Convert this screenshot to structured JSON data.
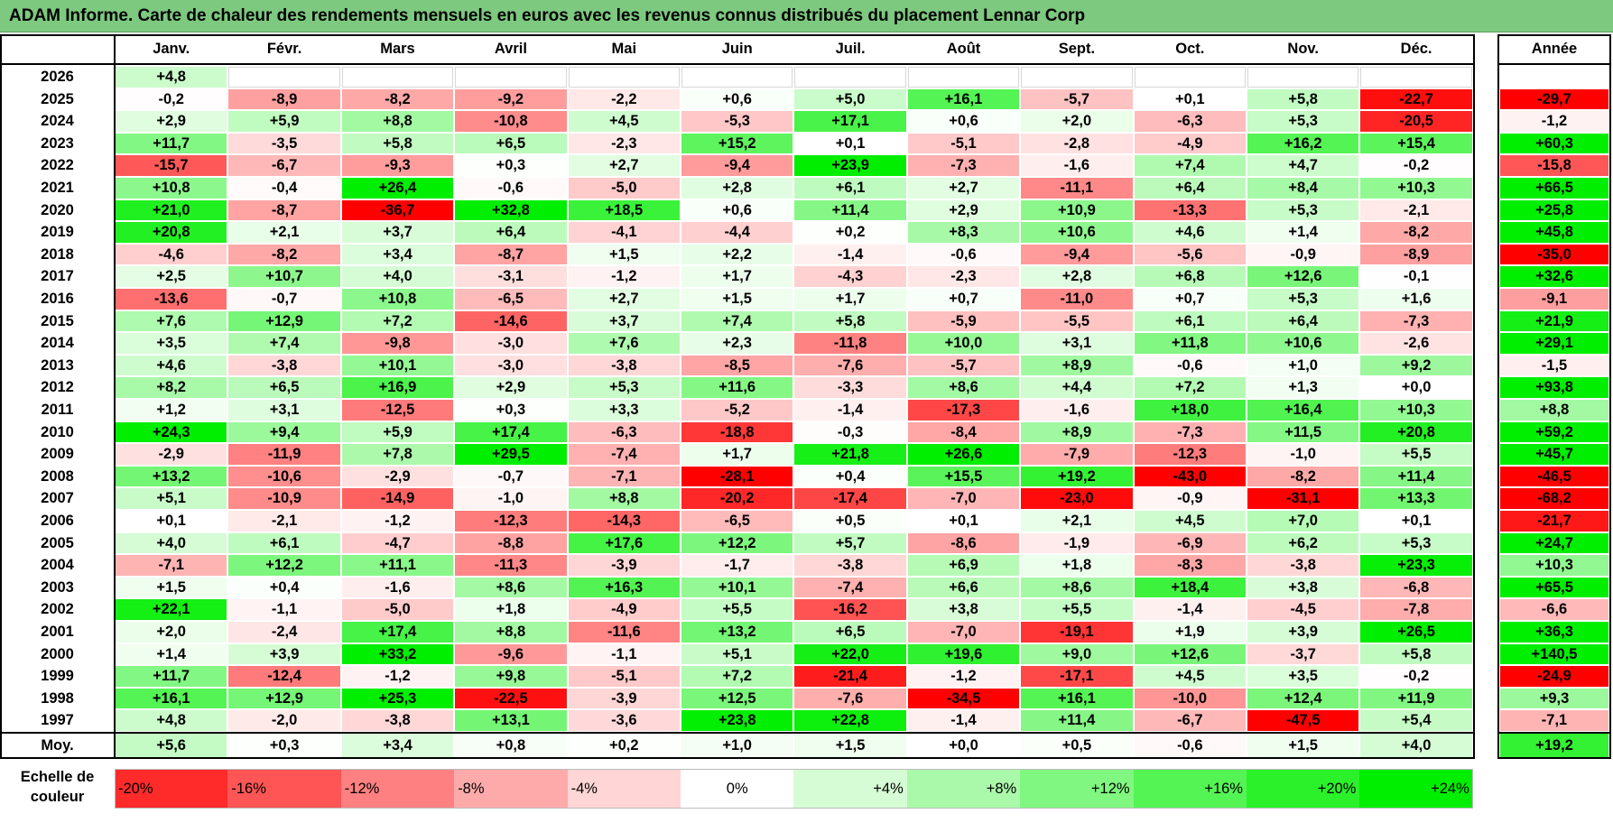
{
  "title": "ADAM Informe. Carte de chaleur des rendements mensuels en euros avec les revenus connus distribués du placement Lennar Corp",
  "colors": {
    "title_bg": "#7dc97f",
    "neg_max": "#ff0000",
    "pos_max": "#00ee00",
    "neutral": "#ffffff"
  },
  "chart_data": {
    "type": "heatmap",
    "title": "ADAM Informe. Carte de chaleur des rendements mensuels en euros avec les revenus connus distribués du placement Lennar Corp",
    "months": [
      "Janv.",
      "Févr.",
      "Mars",
      "Avril",
      "Mai",
      "Juin",
      "Juil.",
      "Août",
      "Sept.",
      "Oct.",
      "Nov.",
      "Déc."
    ],
    "year_header": "Année",
    "rows": [
      {
        "year": "2026",
        "values": [
          "+4,8",
          "",
          "",
          "",
          "",
          "",
          "",
          "",
          "",
          "",
          "",
          ""
        ],
        "annual": ""
      },
      {
        "year": "2025",
        "values": [
          "-0,2",
          "-8,9",
          "-8,2",
          "-9,2",
          "-2,2",
          "+0,6",
          "+5,0",
          "+16,1",
          "-5,7",
          "+0,1",
          "+5,8",
          "-22,7"
        ],
        "annual": "-29,7"
      },
      {
        "year": "2024",
        "values": [
          "+2,9",
          "+5,9",
          "+8,8",
          "-10,8",
          "+4,5",
          "-5,3",
          "+17,1",
          "+0,6",
          "+2,0",
          "-6,3",
          "+5,3",
          "-20,5"
        ],
        "annual": "-1,2"
      },
      {
        "year": "2023",
        "values": [
          "+11,7",
          "-3,5",
          "+5,8",
          "+6,5",
          "-2,3",
          "+15,2",
          "+0,1",
          "-5,1",
          "-2,8",
          "-4,9",
          "+16,2",
          "+15,4"
        ],
        "annual": "+60,3"
      },
      {
        "year": "2022",
        "values": [
          "-15,7",
          "-6,7",
          "-9,3",
          "+0,3",
          "+2,7",
          "-9,4",
          "+23,9",
          "-7,3",
          "-1,6",
          "+7,4",
          "+4,7",
          "-0,2"
        ],
        "annual": "-15,8"
      },
      {
        "year": "2021",
        "values": [
          "+10,8",
          "-0,4",
          "+26,4",
          "-0,6",
          "-5,0",
          "+2,8",
          "+6,1",
          "+2,7",
          "-11,1",
          "+6,4",
          "+8,4",
          "+10,3"
        ],
        "annual": "+66,5"
      },
      {
        "year": "2020",
        "values": [
          "+21,0",
          "-8,7",
          "-36,7",
          "+32,8",
          "+18,5",
          "+0,6",
          "+11,4",
          "+2,9",
          "+10,9",
          "-13,3",
          "+5,3",
          "-2,1"
        ],
        "annual": "+25,8"
      },
      {
        "year": "2019",
        "values": [
          "+20,8",
          "+2,1",
          "+3,7",
          "+6,4",
          "-4,1",
          "-4,4",
          "+0,2",
          "+8,3",
          "+10,6",
          "+4,6",
          "+1,4",
          "-8,2"
        ],
        "annual": "+45,8"
      },
      {
        "year": "2018",
        "values": [
          "-4,6",
          "-8,2",
          "+3,4",
          "-8,7",
          "+1,5",
          "+2,2",
          "-1,4",
          "-0,6",
          "-9,4",
          "-5,6",
          "-0,9",
          "-8,9"
        ],
        "annual": "-35,0"
      },
      {
        "year": "2017",
        "values": [
          "+2,5",
          "+10,7",
          "+4,0",
          "-3,1",
          "-1,2",
          "+1,7",
          "-4,3",
          "-2,3",
          "+2,8",
          "+6,8",
          "+12,6",
          "-0,1"
        ],
        "annual": "+32,6"
      },
      {
        "year": "2016",
        "values": [
          "-13,6",
          "-0,7",
          "+10,8",
          "-6,5",
          "+2,7",
          "+1,5",
          "+1,7",
          "+0,7",
          "-11,0",
          "+0,7",
          "+5,3",
          "+1,6"
        ],
        "annual": "-9,1"
      },
      {
        "year": "2015",
        "values": [
          "+7,6",
          "+12,9",
          "+7,2",
          "-14,6",
          "+3,7",
          "+7,4",
          "+5,8",
          "-5,9",
          "-5,5",
          "+6,1",
          "+6,4",
          "-7,3"
        ],
        "annual": "+21,9"
      },
      {
        "year": "2014",
        "values": [
          "+3,5",
          "+7,4",
          "-9,8",
          "-3,0",
          "+7,6",
          "+2,3",
          "-11,8",
          "+10,0",
          "+3,1",
          "+11,8",
          "+10,6",
          "-2,6"
        ],
        "annual": "+29,1"
      },
      {
        "year": "2013",
        "values": [
          "+4,6",
          "-3,8",
          "+10,1",
          "-3,0",
          "-3,8",
          "-8,5",
          "-7,6",
          "-5,7",
          "+8,9",
          "-0,6",
          "+1,0",
          "+9,2"
        ],
        "annual": "-1,5"
      },
      {
        "year": "2012",
        "values": [
          "+8,2",
          "+6,5",
          "+16,9",
          "+2,9",
          "+5,3",
          "+11,6",
          "-3,3",
          "+8,6",
          "+4,4",
          "+7,2",
          "+1,3",
          "+0,0"
        ],
        "annual": "+93,8"
      },
      {
        "year": "2011",
        "values": [
          "+1,2",
          "+3,1",
          "-12,5",
          "+0,3",
          "+3,3",
          "-5,2",
          "-1,4",
          "-17,3",
          "-1,6",
          "+18,0",
          "+16,4",
          "+10,3"
        ],
        "annual": "+8,8"
      },
      {
        "year": "2010",
        "values": [
          "+24,3",
          "+9,4",
          "+5,9",
          "+17,4",
          "-6,3",
          "-18,8",
          "-0,3",
          "-8,4",
          "+8,9",
          "-7,3",
          "+11,5",
          "+20,8"
        ],
        "annual": "+59,2"
      },
      {
        "year": "2009",
        "values": [
          "-2,9",
          "-11,9",
          "+7,8",
          "+29,5",
          "-7,4",
          "+1,7",
          "+21,8",
          "+26,6",
          "-7,9",
          "-12,3",
          "-1,0",
          "+5,5"
        ],
        "annual": "+45,7"
      },
      {
        "year": "2008",
        "values": [
          "+13,2",
          "-10,6",
          "-2,9",
          "-0,7",
          "-7,1",
          "-28,1",
          "+0,4",
          "+15,5",
          "+19,2",
          "-43,0",
          "-8,2",
          "+11,4"
        ],
        "annual": "-46,5"
      },
      {
        "year": "2007",
        "values": [
          "+5,1",
          "-10,9",
          "-14,9",
          "-1,0",
          "+8,8",
          "-20,2",
          "-17,4",
          "-7,0",
          "-23,0",
          "-0,9",
          "-31,1",
          "+13,3"
        ],
        "annual": "-68,2"
      },
      {
        "year": "2006",
        "values": [
          "+0,1",
          "-2,1",
          "-1,2",
          "-12,3",
          "-14,3",
          "-6,5",
          "+0,5",
          "+0,1",
          "+2,1",
          "+4,5",
          "+7,0",
          "+0,1"
        ],
        "annual": "-21,7"
      },
      {
        "year": "2005",
        "values": [
          "+4,0",
          "+6,1",
          "-4,7",
          "-8,8",
          "+17,6",
          "+12,2",
          "+5,7",
          "-8,6",
          "-1,9",
          "-6,9",
          "+6,2",
          "+5,3"
        ],
        "annual": "+24,7"
      },
      {
        "year": "2004",
        "values": [
          "-7,1",
          "+12,2",
          "+11,1",
          "-11,3",
          "-3,9",
          "-1,7",
          "-3,8",
          "+6,9",
          "+1,8",
          "-8,3",
          "-3,8",
          "+23,3"
        ],
        "annual": "+10,3"
      },
      {
        "year": "2003",
        "values": [
          "+1,5",
          "+0,4",
          "-1,6",
          "+8,6",
          "+16,3",
          "+10,1",
          "-7,4",
          "+6,6",
          "+8,6",
          "+18,4",
          "+3,8",
          "-6,8"
        ],
        "annual": "+65,5"
      },
      {
        "year": "2002",
        "values": [
          "+22,1",
          "-1,1",
          "-5,0",
          "+1,8",
          "-4,9",
          "+5,5",
          "-16,2",
          "+3,8",
          "+5,5",
          "-1,4",
          "-4,5",
          "-7,8"
        ],
        "annual": "-6,6"
      },
      {
        "year": "2001",
        "values": [
          "+2,0",
          "-2,4",
          "+17,4",
          "+8,8",
          "-11,6",
          "+13,2",
          "+6,5",
          "-7,0",
          "-19,1",
          "+1,9",
          "+3,9",
          "+26,5"
        ],
        "annual": "+36,3"
      },
      {
        "year": "2000",
        "values": [
          "+1,4",
          "+3,9",
          "+33,2",
          "-9,6",
          "-1,1",
          "+5,1",
          "+22,0",
          "+19,6",
          "+9,0",
          "+12,6",
          "-3,7",
          "+5,8"
        ],
        "annual": "+140,5"
      },
      {
        "year": "1999",
        "values": [
          "+11,7",
          "-12,4",
          "-1,2",
          "+9,8",
          "-5,1",
          "+7,2",
          "-21,4",
          "-1,2",
          "-17,1",
          "+4,5",
          "+3,5",
          "-0,2"
        ],
        "annual": "-24,9"
      },
      {
        "year": "1998",
        "values": [
          "+16,1",
          "+12,9",
          "+25,3",
          "-22,5",
          "-3,9",
          "+12,5",
          "-7,6",
          "-34,5",
          "+16,1",
          "-10,0",
          "+12,4",
          "+11,9"
        ],
        "annual": "+9,3"
      },
      {
        "year": "1997",
        "values": [
          "+4,8",
          "-2,0",
          "-3,8",
          "+13,1",
          "-3,6",
          "+23,8",
          "+22,8",
          "-1,4",
          "+11,4",
          "-6,7",
          "-47,5",
          "+5,4"
        ],
        "annual": "-7,1"
      }
    ],
    "average": {
      "label": "Moy.",
      "values": [
        "+5,6",
        "+0,3",
        "+3,4",
        "+0,8",
        "+0,2",
        "+1,0",
        "+1,5",
        "+0,0",
        "+0,5",
        "-0,6",
        "+1,5",
        "+4,0"
      ],
      "annual": "+19,2"
    },
    "scale": {
      "label_line1": "Echelle de",
      "label_line2": "couleur",
      "steps": [
        {
          "label": "-20%",
          "value": -20,
          "align": "left"
        },
        {
          "label": "-16%",
          "value": -16,
          "align": "left"
        },
        {
          "label": "-12%",
          "value": -12,
          "align": "left"
        },
        {
          "label": "-8%",
          "value": -8,
          "align": "left"
        },
        {
          "label": "-4%",
          "value": -4,
          "align": "left"
        },
        {
          "label": "0%",
          "value": 0,
          "align": "center"
        },
        {
          "label": "+4%",
          "value": 4,
          "align": "right"
        },
        {
          "label": "+8%",
          "value": 8,
          "align": "right"
        },
        {
          "label": "+12%",
          "value": 12,
          "align": "right"
        },
        {
          "label": "+16%",
          "value": 16,
          "align": "right"
        },
        {
          "label": "+20%",
          "value": 20,
          "align": "right"
        },
        {
          "label": "+24%",
          "value": 24,
          "align": "right"
        }
      ]
    }
  }
}
